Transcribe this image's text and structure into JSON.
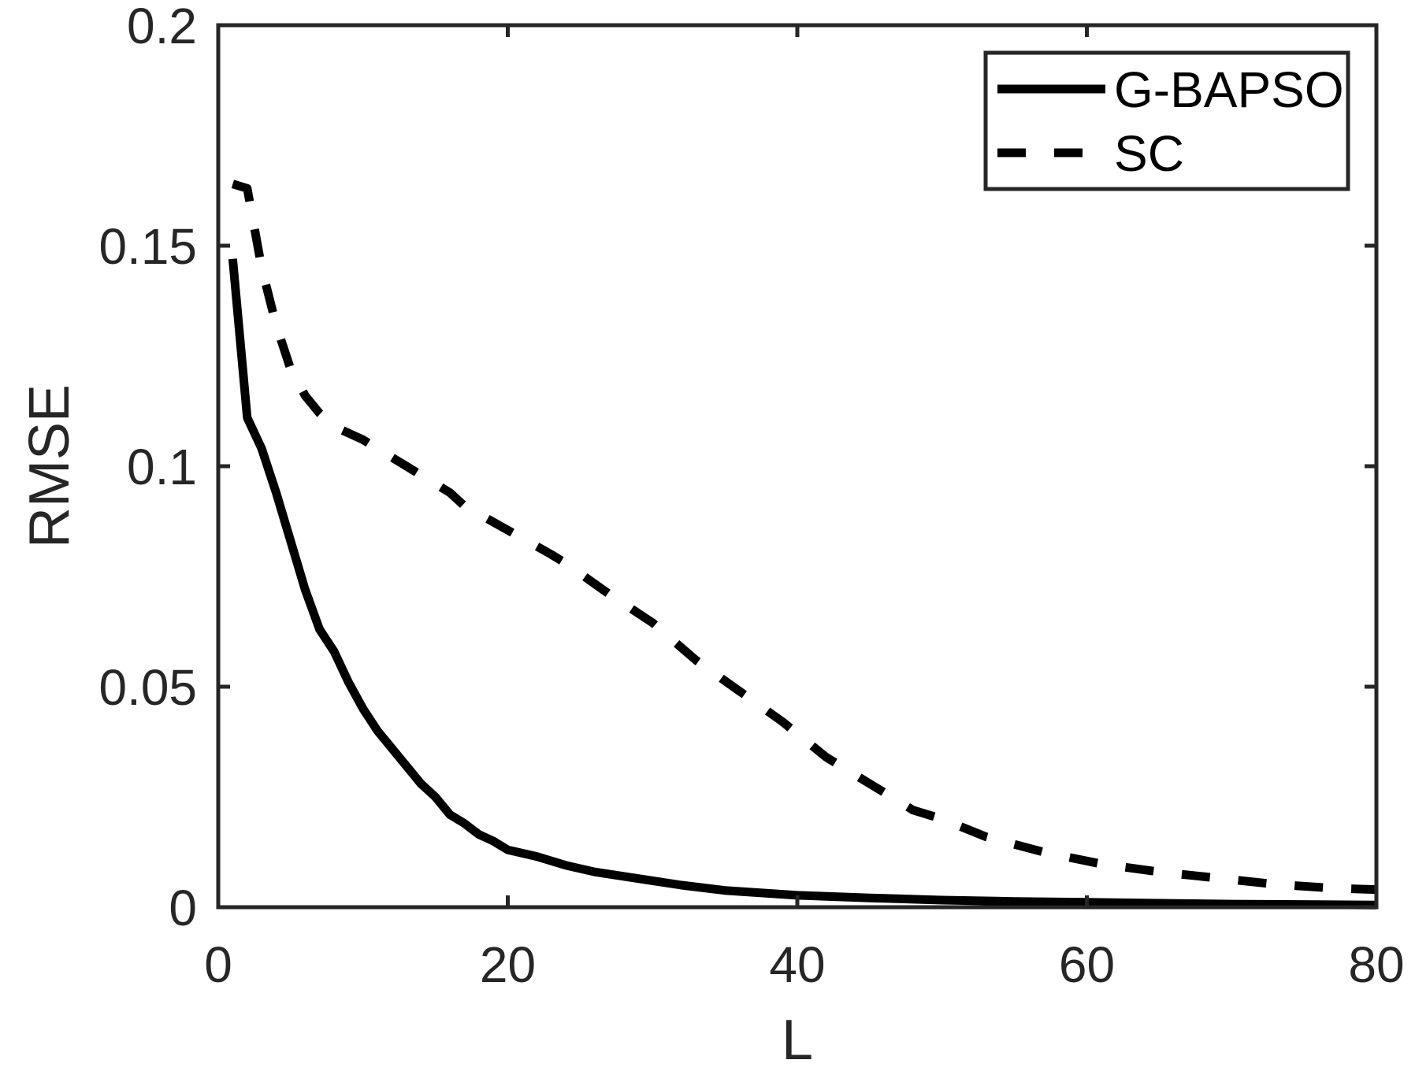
{
  "chart_data": {
    "type": "line",
    "title": "",
    "xlabel": "L",
    "ylabel": "RMSE",
    "xlim": [
      0,
      80
    ],
    "ylim": [
      0,
      0.2
    ],
    "xticks": [
      "0",
      "20",
      "40",
      "60",
      "80"
    ],
    "yticks": [
      "0",
      "0.05",
      "0.1",
      "0.15",
      "0.2"
    ],
    "grid": false,
    "legend_position": "top-right",
    "series": [
      {
        "name": "G-BAPSO",
        "style": "solid",
        "color": "#000000",
        "x": [
          1,
          2,
          3,
          4,
          5,
          6,
          7,
          8,
          9,
          10,
          11,
          12,
          13,
          14,
          15,
          16,
          17,
          18,
          19,
          20,
          22,
          24,
          26,
          28,
          30,
          32,
          35,
          40,
          45,
          50,
          55,
          60,
          65,
          70,
          75,
          80
        ],
        "values": [
          0.147,
          0.111,
          0.104,
          0.094,
          0.083,
          0.072,
          0.063,
          0.058,
          0.051,
          0.045,
          0.04,
          0.036,
          0.032,
          0.028,
          0.025,
          0.021,
          0.019,
          0.0165,
          0.015,
          0.013,
          0.0115,
          0.0095,
          0.008,
          0.007,
          0.006,
          0.005,
          0.0038,
          0.0027,
          0.0021,
          0.0016,
          0.0013,
          0.0011,
          0.0009,
          0.0007,
          0.0006,
          0.0005
        ]
      },
      {
        "name": "SC",
        "style": "dashed",
        "color": "#000000",
        "x": [
          1,
          2,
          3,
          4,
          5,
          6,
          7,
          8,
          10,
          13,
          16,
          17,
          20,
          23,
          24,
          27,
          30,
          33,
          36,
          39,
          42,
          45,
          48,
          50,
          53,
          57,
          61,
          65,
          69,
          73,
          77,
          80
        ],
        "values": [
          0.164,
          0.163,
          0.145,
          0.132,
          0.122,
          0.116,
          0.112,
          0.109,
          0.106,
          0.1,
          0.094,
          0.091,
          0.0855,
          0.08,
          0.078,
          0.071,
          0.0645,
          0.056,
          0.049,
          0.042,
          0.034,
          0.028,
          0.022,
          0.02,
          0.016,
          0.0125,
          0.0098,
          0.008,
          0.0066,
          0.0052,
          0.0043,
          0.004
        ]
      }
    ]
  },
  "legend": {
    "items": [
      {
        "label": "G-BAPSO",
        "style": "solid"
      },
      {
        "label": "SC",
        "style": "dashed"
      }
    ]
  },
  "colors": {
    "axis": "#262626",
    "series": "#000000",
    "background": "#ffffff"
  }
}
